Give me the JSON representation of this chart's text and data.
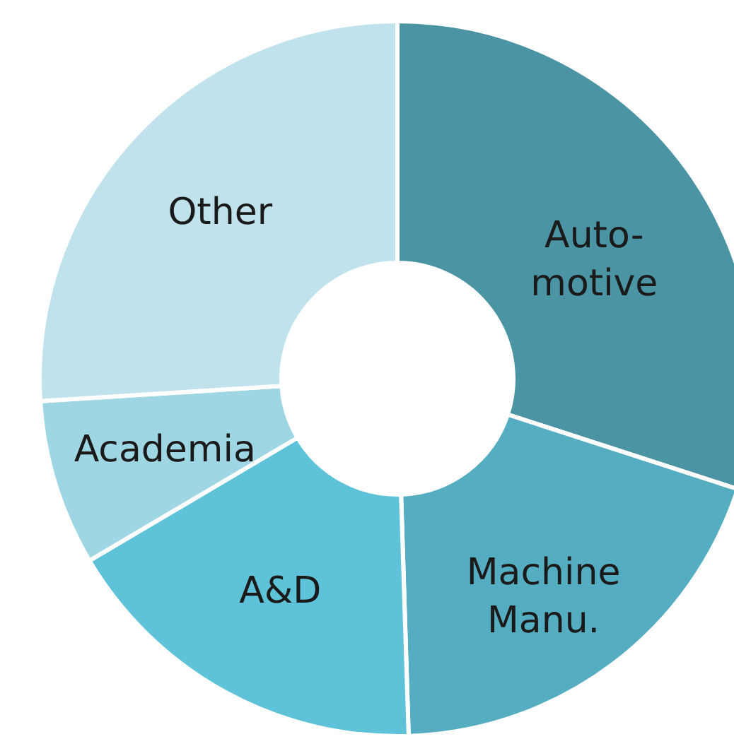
{
  "chart_data": {
    "type": "donut",
    "categories": [
      "Auto-\nmotive",
      "Machine\nManu.",
      "A&D",
      "Academia",
      "Other"
    ],
    "values": [
      30,
      19.5,
      17,
      7.5,
      26
    ],
    "colors": [
      "#4a94a4",
      "#55adc1",
      "#5ec3d8",
      "#9fd6e3",
      "#c0e2ec"
    ]
  }
}
